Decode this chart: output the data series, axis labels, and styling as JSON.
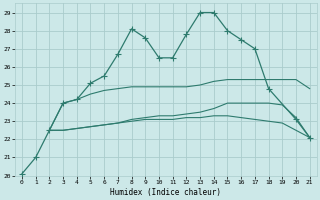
{
  "xlabel": "Humidex (Indice chaleur)",
  "bg_color": "#cce8e8",
  "grid_color": "#aacccc",
  "line_color": "#2e7b6e",
  "xlim": [
    -0.5,
    21.5
  ],
  "ylim": [
    20,
    29.5
  ],
  "xticks": [
    0,
    1,
    2,
    3,
    4,
    5,
    6,
    7,
    8,
    9,
    10,
    11,
    12,
    13,
    14,
    15,
    16,
    17,
    18,
    19,
    20,
    21
  ],
  "yticks": [
    20,
    21,
    22,
    23,
    24,
    25,
    26,
    27,
    28,
    29
  ],
  "main_line": {
    "x": [
      0,
      1,
      2,
      3,
      4,
      5,
      6,
      7,
      8,
      9,
      10,
      11,
      12,
      13,
      14,
      15,
      16,
      17,
      18,
      20,
      21
    ],
    "y": [
      20.1,
      21.0,
      22.5,
      24.0,
      24.2,
      25.1,
      25.5,
      26.7,
      28.1,
      27.6,
      26.5,
      26.5,
      27.8,
      29.0,
      29.0,
      28.0,
      27.5,
      27.0,
      24.8,
      23.1,
      22.1
    ]
  },
  "flat_lines": [
    {
      "x": [
        2,
        3,
        4,
        5,
        6,
        7,
        8,
        9,
        10,
        11,
        12,
        13,
        14,
        15,
        16,
        17,
        18,
        19,
        20,
        21
      ],
      "y": [
        22.5,
        24.0,
        24.2,
        24.5,
        24.7,
        24.8,
        24.9,
        24.9,
        24.9,
        24.9,
        24.9,
        25.0,
        25.2,
        25.3,
        25.3,
        25.3,
        25.3,
        25.3,
        25.3,
        24.8
      ]
    },
    {
      "x": [
        2,
        3,
        4,
        5,
        6,
        7,
        8,
        9,
        10,
        11,
        12,
        13,
        14,
        15,
        16,
        17,
        18,
        19,
        20,
        21
      ],
      "y": [
        22.5,
        22.5,
        22.6,
        22.7,
        22.8,
        22.9,
        23.1,
        23.2,
        23.3,
        23.3,
        23.4,
        23.5,
        23.7,
        24.0,
        24.0,
        24.0,
        24.0,
        23.9,
        23.2,
        22.1
      ]
    },
    {
      "x": [
        2,
        3,
        4,
        5,
        6,
        7,
        8,
        9,
        10,
        11,
        12,
        13,
        14,
        15,
        16,
        17,
        18,
        19,
        20,
        21
      ],
      "y": [
        22.5,
        22.5,
        22.6,
        22.7,
        22.8,
        22.9,
        23.0,
        23.1,
        23.1,
        23.1,
        23.2,
        23.2,
        23.3,
        23.3,
        23.2,
        23.1,
        23.0,
        22.9,
        22.5,
        22.1
      ]
    }
  ]
}
